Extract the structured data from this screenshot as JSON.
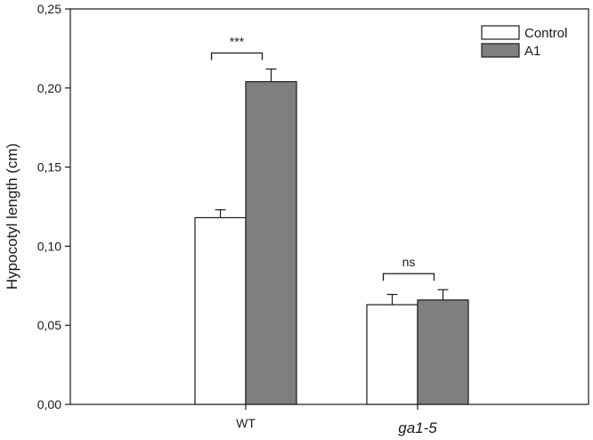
{
  "chart_data": {
    "type": "bar",
    "ylabel": "Hypocotyl length (cm)",
    "xlabel": "",
    "ylim": [
      0,
      0.25
    ],
    "yticks": [
      "0,00",
      "0,05",
      "0,10",
      "0,15",
      "0,20",
      "0,25"
    ],
    "categories": [
      "WT",
      "ga1-5"
    ],
    "categories_italic": [
      false,
      true
    ],
    "series": [
      {
        "name": "Control",
        "values": [
          0.118,
          0.063
        ],
        "errors": [
          0.005,
          0.0065
        ],
        "color": "#ffffff"
      },
      {
        "name": "A1",
        "values": [
          0.204,
          0.066
        ],
        "errors": [
          0.008,
          0.0065
        ],
        "color": "#7f7f7f"
      }
    ],
    "annotations": [
      "***",
      "ns"
    ],
    "legend_position": "top-right",
    "grid": false
  }
}
